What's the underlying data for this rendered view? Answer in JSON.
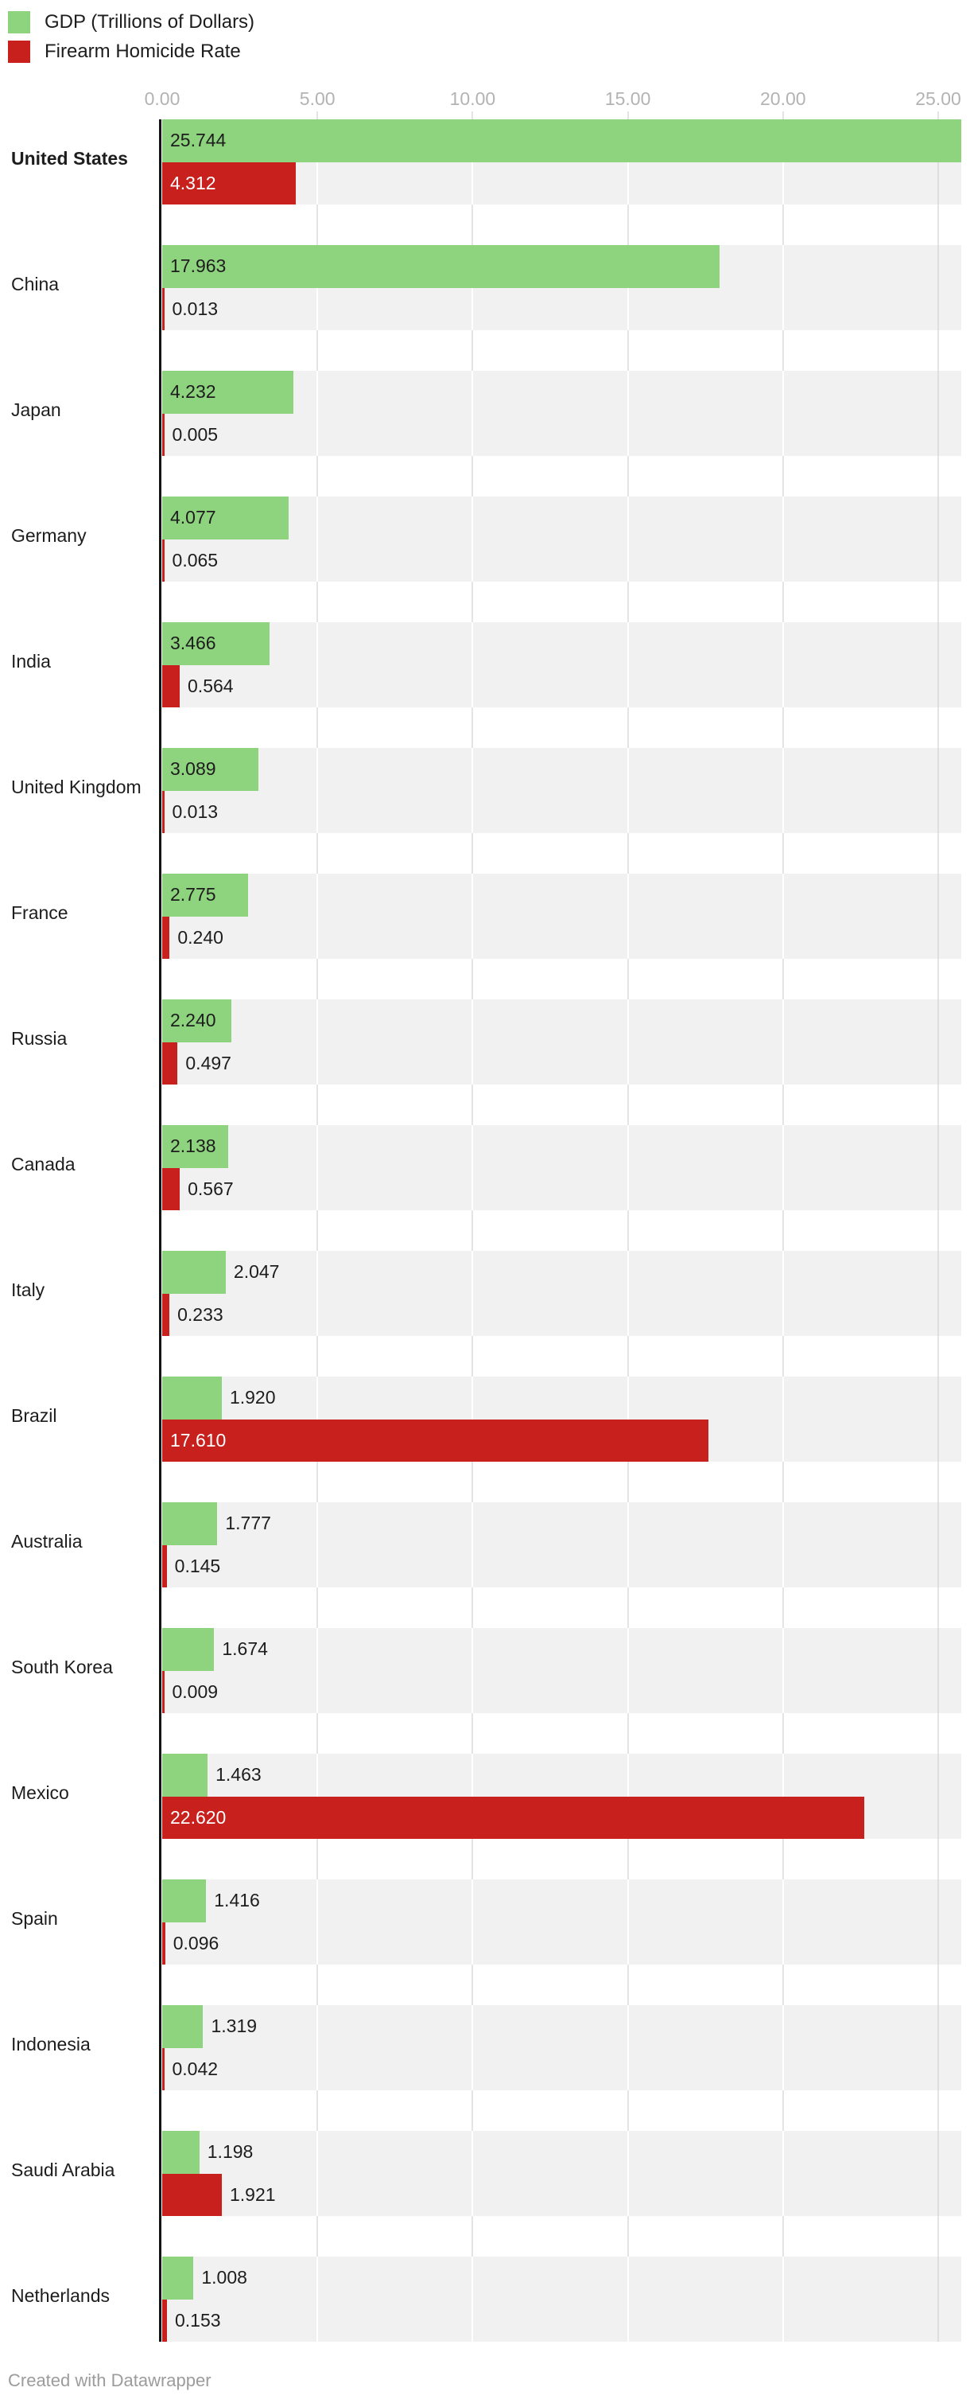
{
  "colors": {
    "gdp_green": "#8ed47e",
    "homicide_red": "#c7201d",
    "axis_tick_label": "#b3b3b3",
    "track_bg": "#f1f1f1",
    "gridline_gray": "#e4e4e4",
    "gridline_on_track": "#ffffff",
    "gridline_last": "#dedede",
    "axis_line_black": "#141414",
    "label_dark": "#1d1d1d",
    "label_light": "#ffffff",
    "footer_text": "#9c9c9c"
  },
  "legend": {
    "items": [
      {
        "label": "GDP (Trillions of Dollars)",
        "color_key": "gdp_green"
      },
      {
        "label": "Firearm Homicide Rate",
        "color_key": "homicide_red"
      }
    ]
  },
  "x_axis": {
    "tick_labels": [
      "0.00",
      "5.00",
      "10.00",
      "15.00",
      "20.00",
      "25.00"
    ],
    "tick_values": [
      0,
      5,
      10,
      15,
      20,
      25
    ]
  },
  "chart_data": {
    "type": "bar",
    "orientation": "horizontal",
    "title": "",
    "xlabel": "",
    "ylabel": "",
    "xlim": [
      0,
      25.744
    ],
    "grid": true,
    "legend_position": "top-left",
    "value_format": "3-decimals",
    "highlighted_category": "United States",
    "categories": [
      "United States",
      "China",
      "Japan",
      "Germany",
      "India",
      "United Kingdom",
      "France",
      "Russia",
      "Canada",
      "Italy",
      "Brazil",
      "Australia",
      "South Korea",
      "Mexico",
      "Spain",
      "Indonesia",
      "Saudi Arabia",
      "Netherlands"
    ],
    "series": [
      {
        "name": "GDP (Trillions of Dollars)",
        "color_key": "gdp_green",
        "values": [
          25.744,
          17.963,
          4.232,
          4.077,
          3.466,
          3.089,
          2.775,
          2.24,
          2.138,
          2.047,
          1.92,
          1.777,
          1.674,
          1.463,
          1.416,
          1.319,
          1.198,
          1.008
        ],
        "labels": [
          "25.744",
          "17.963",
          "4.232",
          "4.077",
          "3.466",
          "3.089",
          "2.775",
          "2.240",
          "2.138",
          "2.047",
          "1.920",
          "1.777",
          "1.674",
          "1.463",
          "1.416",
          "1.319",
          "1.198",
          "1.008"
        ],
        "label_inside": [
          true,
          true,
          true,
          true,
          true,
          true,
          true,
          true,
          true,
          false,
          false,
          false,
          false,
          false,
          false,
          false,
          false,
          false
        ]
      },
      {
        "name": "Firearm Homicide Rate",
        "color_key": "homicide_red",
        "values": [
          4.312,
          0.013,
          0.005,
          0.065,
          0.564,
          0.013,
          0.24,
          0.497,
          0.567,
          0.233,
          17.61,
          0.145,
          0.009,
          22.62,
          0.096,
          0.042,
          1.921,
          0.153
        ],
        "labels": [
          "4.312",
          "0.013",
          "0.005",
          "0.065",
          "0.564",
          "0.013",
          "0.240",
          "0.497",
          "0.567",
          "0.233",
          "17.610",
          "0.145",
          "0.009",
          "22.620",
          "0.096",
          "0.042",
          "1.921",
          "0.153"
        ],
        "label_inside": [
          true,
          false,
          false,
          false,
          false,
          false,
          false,
          false,
          false,
          false,
          true,
          false,
          false,
          true,
          false,
          false,
          false,
          false
        ]
      }
    ]
  },
  "footer": {
    "credit": "Created with Datawrapper"
  }
}
